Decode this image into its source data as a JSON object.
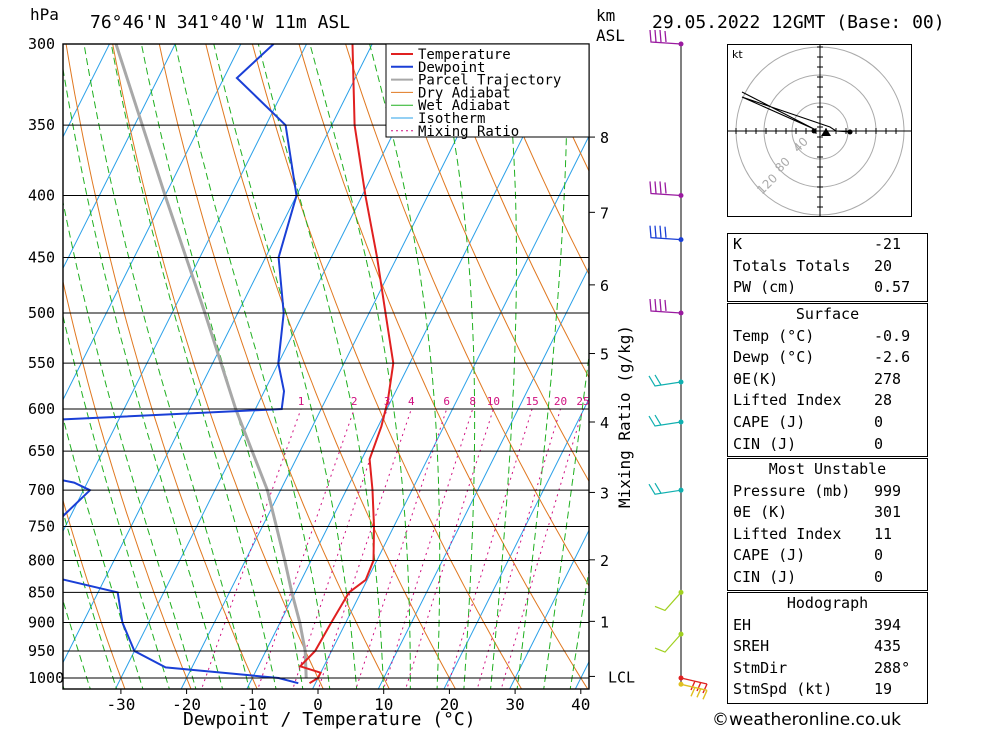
{
  "header": {
    "pressure_unit": "hPa",
    "location": "76°46'N  341°40'W  11m  ASL",
    "km_label": "km",
    "asl_label": "ASL",
    "datetime": "29.05.2022  12GMT  (Base: 00)"
  },
  "chart_data": {
    "type": "skew-t",
    "pressure_levels": [
      300,
      350,
      400,
      450,
      500,
      550,
      600,
      650,
      700,
      750,
      800,
      850,
      900,
      950,
      1000
    ],
    "temperature_ticks": [
      -30,
      -20,
      -10,
      0,
      10,
      20,
      30,
      40
    ],
    "xlabel": "Dewpoint / Temperature (°C)",
    "right_label": "Mixing Ratio (g/kg)",
    "km_ticks": [
      {
        "label": "8",
        "p": 358
      },
      {
        "label": "7",
        "p": 413
      },
      {
        "label": "6",
        "p": 474
      },
      {
        "label": "5",
        "p": 540
      },
      {
        "label": "4",
        "p": 615
      },
      {
        "label": "3",
        "p": 703
      },
      {
        "label": "2",
        "p": 799
      },
      {
        "label": "1",
        "p": 898
      },
      {
        "label": "LCL",
        "p": 997
      }
    ],
    "mixing_ratio_labels": [
      "1",
      "2",
      "3",
      "4",
      "6",
      "8",
      "10",
      "15",
      "20",
      "25"
    ],
    "mixing_ratio_values": [
      1,
      2,
      3,
      4,
      6,
      8,
      10,
      15,
      20,
      25
    ],
    "legend": [
      "Temperature",
      "Dewpoint",
      "Parcel Trajectory",
      "Dry Adiabat",
      "Wet Adiabat",
      "Isotherm",
      "Mixing Ratio"
    ],
    "colors": {
      "temperature": "#e02020",
      "dewpoint": "#1a3fd6",
      "parcel": "#a8a8a8",
      "dry_adiabat": "#e07820",
      "wet_adiabat": "#20b020",
      "isotherm": "#2aa0e8",
      "mixing_ratio": "#d01080"
    },
    "temperature_profile": [
      [
        300,
        -43
      ],
      [
        350,
        -36.5
      ],
      [
        400,
        -29.5
      ],
      [
        450,
        -23
      ],
      [
        500,
        -17.5
      ],
      [
        550,
        -12.5
      ],
      [
        590,
        -10.5
      ],
      [
        620,
        -9.5
      ],
      [
        660,
        -8.8
      ],
      [
        700,
        -6
      ],
      [
        750,
        -3
      ],
      [
        800,
        -0.5
      ],
      [
        830,
        -0.2
      ],
      [
        850,
        -1.8
      ],
      [
        900,
        -2.2
      ],
      [
        950,
        -2.5
      ],
      [
        978,
        -3.6
      ],
      [
        990,
        0
      ],
      [
        1000,
        0
      ],
      [
        1010,
        -0.9
      ]
    ],
    "dewpoint_profile": [
      [
        300,
        -55
      ],
      [
        320,
        -58
      ],
      [
        350,
        -47
      ],
      [
        400,
        -40
      ],
      [
        450,
        -38
      ],
      [
        500,
        -33
      ],
      [
        550,
        -30
      ],
      [
        580,
        -27
      ],
      [
        600,
        -26
      ],
      [
        620,
        -80
      ],
      [
        650,
        -78
      ],
      [
        690,
        -52
      ],
      [
        700,
        -49
      ],
      [
        750,
        -52
      ],
      [
        790,
        -62
      ],
      [
        800,
        -60
      ],
      [
        850,
        -37
      ],
      [
        900,
        -34
      ],
      [
        950,
        -30
      ],
      [
        980,
        -24
      ],
      [
        1000,
        -6
      ],
      [
        1010,
        -2.6
      ]
    ],
    "parcel_profile": [
      [
        300,
        -79
      ],
      [
        400,
        -60
      ],
      [
        500,
        -45
      ],
      [
        600,
        -33
      ],
      [
        700,
        -22
      ],
      [
        800,
        -14
      ],
      [
        850,
        -10.5
      ],
      [
        900,
        -7
      ],
      [
        950,
        -4
      ],
      [
        1000,
        -1.8
      ]
    ],
    "wind_barbs": [
      {
        "p": 300,
        "color": "#9a1aa0"
      },
      {
        "p": 400,
        "color": "#9a1aa0"
      },
      {
        "p": 435,
        "color": "#1a3fd6"
      },
      {
        "p": 500,
        "color": "#9a1aa0"
      },
      {
        "p": 570,
        "color": "#10b0b0"
      },
      {
        "p": 615,
        "color": "#10b0b0"
      },
      {
        "p": 700,
        "color": "#10b0b0"
      },
      {
        "p": 850,
        "color": "#a0d020"
      },
      {
        "p": 920,
        "color": "#a0d020"
      },
      {
        "p": 1000,
        "color": "#e02020"
      },
      {
        "p": 1012,
        "color": "#e0c020"
      }
    ]
  },
  "hodograph": {
    "unit": "kt",
    "ring_labels": [
      "40",
      "80",
      "120"
    ]
  },
  "indices": {
    "rows": [
      {
        "label": "K",
        "value": "-21"
      },
      {
        "label": "Totals Totals",
        "value": "20"
      },
      {
        "label": "PW (cm)",
        "value": "0.57"
      }
    ]
  },
  "surface": {
    "title": "Surface",
    "rows": [
      {
        "label": "Temp (°C)",
        "value": "-0.9"
      },
      {
        "label": "Dewp (°C)",
        "value": "-2.6"
      },
      {
        "label": "θE(K)",
        "value": "278"
      },
      {
        "label": "Lifted Index",
        "value": "28"
      },
      {
        "label": "CAPE (J)",
        "value": "0"
      },
      {
        "label": "CIN (J)",
        "value": "0"
      }
    ]
  },
  "most_unstable": {
    "title": "Most Unstable",
    "rows": [
      {
        "label": "Pressure (mb)",
        "value": "999"
      },
      {
        "label": "θE (K)",
        "value": "301"
      },
      {
        "label": "Lifted Index",
        "value": "11"
      },
      {
        "label": "CAPE (J)",
        "value": "0"
      },
      {
        "label": "CIN (J)",
        "value": "0"
      }
    ]
  },
  "hodograph_stats": {
    "title": "Hodograph",
    "rows": [
      {
        "label": "EH",
        "value": "394"
      },
      {
        "label": "SREH",
        "value": "435"
      },
      {
        "label": "StmDir",
        "value": "288°"
      },
      {
        "label": "StmSpd (kt)",
        "value": "19"
      }
    ]
  },
  "footer": {
    "credit": "©weatheronline.co.uk"
  }
}
